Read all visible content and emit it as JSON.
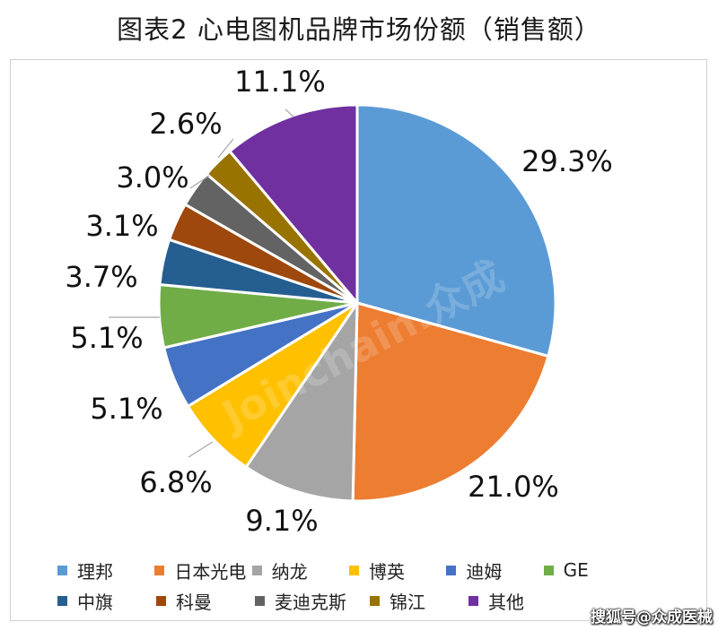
{
  "title": "图表2  心电图机品牌市场份额（销售额）",
  "watermark": "搜狐号@众成医械",
  "bg_watermark": "Joinchain.众成",
  "chart_data": {
    "type": "pie",
    "title": "图表2  心电图机品牌市场份额（销售额）",
    "categories": [
      "理邦",
      "日本光电",
      "纳龙",
      "博英",
      "迪姆",
      "GE",
      "中旗",
      "科曼",
      "麦迪克斯",
      "锦江",
      "其他"
    ],
    "values": [
      29.3,
      21.0,
      9.1,
      6.8,
      5.1,
      5.1,
      3.7,
      3.1,
      3.0,
      2.6,
      11.1
    ],
    "labels": [
      "29.3%",
      "21.0%",
      "9.1%",
      "6.8%",
      "5.1%",
      "5.1%",
      "3.7%",
      "3.1%",
      "3.0%",
      "2.6%",
      "11.1%"
    ],
    "colors": [
      "#5B9BD5",
      "#ED7D31",
      "#A5A5A5",
      "#FFC000",
      "#4472C4",
      "#70AD47",
      "#255E91",
      "#9E480E",
      "#636363",
      "#997300",
      "#7030A0"
    ],
    "legend_position": "bottom",
    "start": "12 o'clock, clockwise"
  }
}
